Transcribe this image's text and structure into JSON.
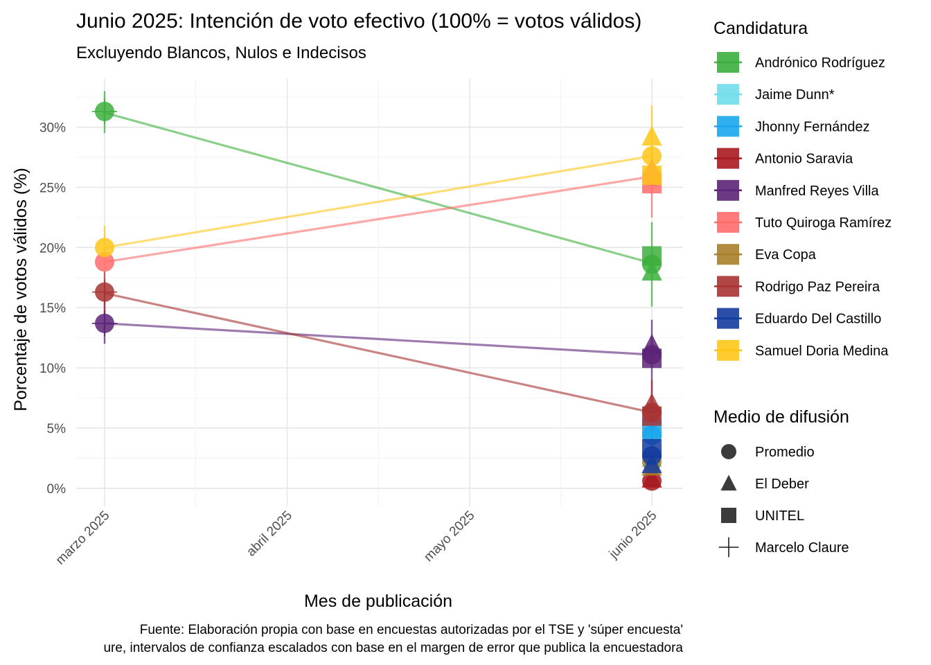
{
  "chart_data": {
    "type": "line",
    "title": "Junio 2025: Intención de voto efectivo (100% = votos válidos)",
    "subtitle": "Excluyendo Blancos, Nulos e Indecisos",
    "xlabel": "Mes de publicación",
    "ylabel": "Porcentaje de votos válidos (%)",
    "x_categories": [
      "marzo 2025",
      "abril 2025",
      "mayo 2025",
      "junio 2025"
    ],
    "x_ticks": [
      "marzo 2025",
      "abril 2025",
      "mayo 2025",
      "junio 2025"
    ],
    "y_ticks": [
      "0%",
      "5%",
      "10%",
      "15%",
      "20%",
      "25%",
      "30%"
    ],
    "ylim": [
      -1.5,
      34
    ],
    "grid": true,
    "legend_position": "right",
    "caption_lines": [
      "Fuente: Elaboración propia con base en encuestas autorizadas por el TSE y 'súper encuesta'",
      "ure, intervalos de confianza escalados con base en el margen de error que publica la encuestadora"
    ],
    "legend_candidatura": {
      "title": "Candidatura",
      "items": [
        {
          "name": "Andrónico Rodríguez",
          "color": "#3CAF3C"
        },
        {
          "name": "Jaime Dunn*",
          "color": "#6FDDEA"
        },
        {
          "name": "Jhonny Fernández",
          "color": "#1AA7EC"
        },
        {
          "name": "Antonio Saravia",
          "color": "#A8181F"
        },
        {
          "name": "Manfred Reyes Villa",
          "color": "#5C2378"
        },
        {
          "name": "Tuto Quiroga Ramírez",
          "color": "#FF6B6B"
        },
        {
          "name": "Eva Copa",
          "color": "#A87F2A"
        },
        {
          "name": "Rodrigo Paz Pereira",
          "color": "#A83232"
        },
        {
          "name": "Eduardo Del Castillo",
          "color": "#143CA0"
        },
        {
          "name": "Samuel Doria Medina",
          "color": "#FFC61A"
        }
      ]
    },
    "legend_medio": {
      "title": "Medio de difusión",
      "items": [
        {
          "name": "Promedio",
          "shape": "circle"
        },
        {
          "name": "El Deber",
          "shape": "triangle"
        },
        {
          "name": "UNITEL",
          "shape": "square"
        },
        {
          "name": "Marcelo Claure",
          "shape": "cross"
        }
      ]
    },
    "series": [
      {
        "name": "Andrónico Rodríguez",
        "color": "#3CAF3C",
        "trend": [
          {
            "x": "marzo 2025",
            "y": 31.2
          },
          {
            "x": "junio 2025",
            "y": 18.7
          }
        ],
        "points": [
          {
            "x": "marzo 2025",
            "medio": "Promedio",
            "y": 31.3
          },
          {
            "x": "marzo 2025",
            "medio": "Marcelo Claure",
            "y": 31.3,
            "lo": 29.5,
            "hi": 33.0
          },
          {
            "x": "junio 2025",
            "medio": "UNITEL",
            "y": 19.3
          },
          {
            "x": "junio 2025",
            "medio": "El Deber",
            "y": 18.0
          },
          {
            "x": "junio 2025",
            "medio": "Promedio",
            "y": 18.6,
            "lo": 15.1,
            "hi": 22.1
          }
        ]
      },
      {
        "name": "Jaime Dunn*",
        "color": "#6FDDEA",
        "trend": [],
        "points": [
          {
            "x": "junio 2025",
            "medio": "El Deber",
            "y": 2.5
          },
          {
            "x": "junio 2025",
            "medio": "Promedio",
            "y": 2.6
          }
        ]
      },
      {
        "name": "Jhonny Fernández",
        "color": "#1AA7EC",
        "trend": [],
        "points": [
          {
            "x": "junio 2025",
            "medio": "UNITEL",
            "y": 5.0
          },
          {
            "x": "junio 2025",
            "medio": "Promedio",
            "y": 4.4,
            "lo": 3.0,
            "hi": 6.0
          }
        ]
      },
      {
        "name": "Antonio Saravia",
        "color": "#A8181F",
        "trend": [],
        "points": [
          {
            "x": "junio 2025",
            "medio": "El Deber",
            "y": 0.8
          },
          {
            "x": "junio 2025",
            "medio": "Promedio",
            "y": 0.6
          }
        ]
      },
      {
        "name": "Manfred Reyes Villa",
        "color": "#5C2378",
        "trend": [
          {
            "x": "marzo 2025",
            "y": 13.7
          },
          {
            "x": "junio 2025",
            "y": 11.1
          }
        ],
        "points": [
          {
            "x": "marzo 2025",
            "medio": "Promedio",
            "y": 13.7
          },
          {
            "x": "marzo 2025",
            "medio": "Marcelo Claure",
            "y": 13.7,
            "lo": 12.0,
            "hi": 15.5
          },
          {
            "x": "junio 2025",
            "medio": "El Deber",
            "y": 11.9
          },
          {
            "x": "junio 2025",
            "medio": "UNITEL",
            "y": 10.8
          },
          {
            "x": "junio 2025",
            "medio": "Promedio",
            "y": 11.1,
            "lo": 7.5,
            "hi": 14.0
          }
        ]
      },
      {
        "name": "Tuto Quiroga Ramírez",
        "color": "#FF6B6B",
        "trend": [
          {
            "x": "marzo 2025",
            "y": 18.8
          },
          {
            "x": "junio 2025",
            "y": 25.9
          }
        ],
        "points": [
          {
            "x": "marzo 2025",
            "medio": "Promedio",
            "y": 18.8
          },
          {
            "x": "junio 2025",
            "medio": "UNITEL",
            "y": 25.3
          },
          {
            "x": "junio 2025",
            "medio": "El Deber",
            "y": 26.5
          },
          {
            "x": "junio 2025",
            "medio": "Promedio",
            "y": 25.9,
            "lo": 22.5,
            "hi": 28.5
          }
        ]
      },
      {
        "name": "Eva Copa",
        "color": "#A87F2A",
        "trend": [],
        "points": [
          {
            "x": "junio 2025",
            "medio": "El Deber",
            "y": 1.8
          },
          {
            "x": "junio 2025",
            "medio": "Promedio",
            "y": 2.2
          }
        ]
      },
      {
        "name": "Rodrigo Paz Pereira",
        "color": "#A83232",
        "trend": [
          {
            "x": "marzo 2025",
            "y": 16.2
          },
          {
            "x": "junio 2025",
            "y": 6.3
          }
        ],
        "points": [
          {
            "x": "marzo 2025",
            "medio": "Promedio",
            "y": 16.3
          },
          {
            "x": "marzo 2025",
            "medio": "Marcelo Claure",
            "y": 16.3,
            "lo": 14.5,
            "hi": 18.0
          },
          {
            "x": "junio 2025",
            "medio": "El Deber",
            "y": 7.0
          },
          {
            "x": "junio 2025",
            "medio": "UNITEL",
            "y": 6.0
          },
          {
            "x": "junio 2025",
            "medio": "Promedio",
            "y": 6.3,
            "lo": 4.5,
            "hi": 9.0
          }
        ]
      },
      {
        "name": "Eduardo Del Castillo",
        "color": "#143CA0",
        "trend": [],
        "points": [
          {
            "x": "junio 2025",
            "medio": "UNITEL",
            "y": 3.3
          },
          {
            "x": "junio 2025",
            "medio": "El Deber",
            "y": 2.0
          },
          {
            "x": "junio 2025",
            "medio": "Promedio",
            "y": 2.7
          }
        ]
      },
      {
        "name": "Samuel Doria Medina",
        "color": "#FFC61A",
        "trend": [
          {
            "x": "marzo 2025",
            "y": 20.0
          },
          {
            "x": "junio 2025",
            "y": 27.6
          }
        ],
        "points": [
          {
            "x": "marzo 2025",
            "medio": "Promedio",
            "y": 20.0,
            "lo": 18.2,
            "hi": 21.8
          },
          {
            "x": "junio 2025",
            "medio": "El Deber",
            "y": 29.2
          },
          {
            "x": "junio 2025",
            "medio": "UNITEL",
            "y": 26.0
          },
          {
            "x": "junio 2025",
            "medio": "Promedio",
            "y": 27.6,
            "lo": 24.5,
            "hi": 31.8
          }
        ]
      }
    ]
  }
}
